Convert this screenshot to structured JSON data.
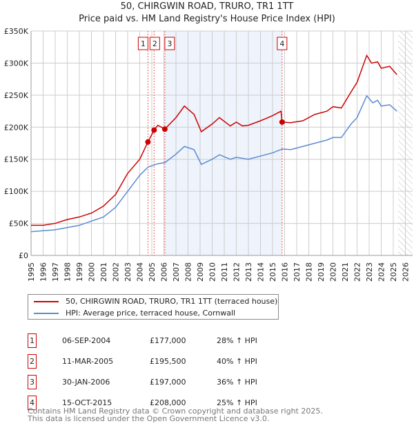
{
  "chart_data": {
    "type": "line",
    "title": "50, CHIRGWIN ROAD, TRURO, TR1 1TT",
    "subtitle": "Price paid vs. HM Land Registry's House Price Index (HPI)",
    "xlim": [
      1995,
      2026.6
    ],
    "ylim": [
      0,
      350000
    ],
    "y_ticks": [
      {
        "v": 0,
        "label": "£0"
      },
      {
        "v": 50000,
        "label": "£50K"
      },
      {
        "v": 100000,
        "label": "£100K"
      },
      {
        "v": 150000,
        "label": "£150K"
      },
      {
        "v": 200000,
        "label": "£200K"
      },
      {
        "v": 250000,
        "label": "£250K"
      },
      {
        "v": 300000,
        "label": "£300K"
      },
      {
        "v": 350000,
        "label": "£350K"
      }
    ],
    "x_ticks": [
      "1995",
      "1996",
      "1997",
      "1998",
      "1999",
      "2000",
      "2001",
      "2002",
      "2003",
      "2004",
      "2005",
      "2006",
      "2007",
      "2008",
      "2009",
      "2010",
      "2011",
      "2012",
      "2013",
      "2014",
      "2015",
      "2016",
      "2017",
      "2018",
      "2019",
      "2020",
      "2021",
      "2022",
      "2023",
      "2024",
      "2025",
      "2026"
    ],
    "grid": true,
    "shaded_range": [
      2006.08,
      2015.79
    ],
    "hatched_from": 2025.4,
    "series": [
      {
        "name": "50, CHIRGWIN ROAD, TRURO, TR1 1TT (terraced house)",
        "color": "#cc0000",
        "x": [
          1995,
          1996,
          1997,
          1998,
          1999,
          2000,
          2001,
          2002,
          2003,
          2004,
          2004.68,
          2005.19,
          2005.5,
          2006.08,
          2007,
          2007.7,
          2008.5,
          2009.1,
          2010,
          2010.6,
          2011.5,
          2012,
          2012.5,
          2013,
          2014,
          2015,
          2015.7,
          2015.79,
          2016.5,
          2017.5,
          2018.5,
          2019.5,
          2020,
          2020.7,
          2021.5,
          2022,
          2022.8,
          2023.2,
          2023.7,
          2024,
          2024.7,
          2025.3
        ],
        "y": [
          47000,
          47000,
          50000,
          56000,
          60000,
          66000,
          77000,
          95000,
          128000,
          150000,
          177000,
          195500,
          203000,
          197000,
          215000,
          233000,
          220000,
          193000,
          205000,
          215000,
          202000,
          208000,
          202000,
          203000,
          210000,
          218000,
          225000,
          208000,
          207000,
          210000,
          220000,
          225000,
          232000,
          230000,
          255000,
          270000,
          312000,
          300000,
          302000,
          292000,
          295000,
          282000
        ]
      },
      {
        "name": "HPI: Average price, terraced house, Cornwall",
        "color": "#5b8bd0",
        "x": [
          1995,
          1997,
          1999,
          2001,
          2002,
          2003,
          2004,
          2004.7,
          2005.5,
          2006.1,
          2007,
          2007.7,
          2008.5,
          2009.1,
          2010,
          2010.6,
          2011.5,
          2012,
          2013,
          2014,
          2015,
          2015.8,
          2016.5,
          2017.5,
          2018.5,
          2019.5,
          2020,
          2020.7,
          2021.5,
          2022,
          2022.8,
          2023.3,
          2023.7,
          2024,
          2024.7,
          2025.3
        ],
        "y": [
          37000,
          40000,
          47000,
          60000,
          75000,
          100000,
          125000,
          138000,
          143000,
          145000,
          158000,
          170000,
          165000,
          142000,
          150000,
          157000,
          150000,
          153000,
          150000,
          155000,
          160000,
          166000,
          165000,
          170000,
          175000,
          180000,
          184000,
          184000,
          205000,
          215000,
          249000,
          238000,
          242000,
          233000,
          235000,
          225000
        ]
      }
    ],
    "sales": [
      {
        "id": "1",
        "x": 2004.68,
        "y": 177000,
        "date": "06-SEP-2004",
        "price": "£177,000",
        "hpi": "28% ↑ HPI"
      },
      {
        "id": "2",
        "x": 2005.19,
        "y": 195500,
        "date": "11-MAR-2005",
        "price": "£195,500",
        "hpi": "40% ↑ HPI"
      },
      {
        "id": "3",
        "x": 2006.08,
        "y": 197000,
        "date": "30-JAN-2006",
        "price": "£197,000",
        "hpi": "36% ↑ HPI"
      },
      {
        "id": "4",
        "x": 2015.79,
        "y": 208000,
        "date": "15-OCT-2015",
        "price": "£208,000",
        "hpi": "25% ↑ HPI"
      }
    ]
  },
  "footer": {
    "line1": "Contains HM Land Registry data © Crown copyright and database right 2025.",
    "line2": "This data is licensed under the Open Government Licence v3.0."
  }
}
